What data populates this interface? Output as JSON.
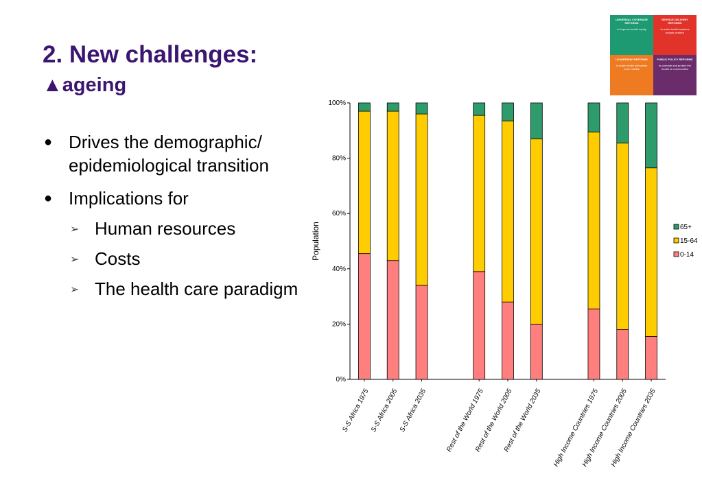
{
  "slide": {
    "title": "2. New challenges:",
    "subtitle": "▲ageing"
  },
  "bullets": [
    {
      "text": "Drives the demographic/ epidemiological transition"
    },
    {
      "text": "Implications for"
    }
  ],
  "sub_bullets": [
    "Human resources",
    "Costs",
    "The health care paradigm"
  ],
  "logo": {
    "tl": {
      "title": "UNIVERSAL COVERAGE REFORMS",
      "sub": "to improve health equity"
    },
    "tr": {
      "title": "SERVICE DELIVERY REFORMS",
      "sub": "to make health systems people-centred"
    },
    "bl": {
      "title": "LEADERSHIP REFORMS",
      "sub": "to make health authorities more reliable"
    },
    "br": {
      "title": "PUBLIC POLICY REFORMS",
      "sub": "to promote and protect the health of communities"
    }
  },
  "chart_data": {
    "type": "bar",
    "stacked": true,
    "percent": true,
    "ylabel": "Population",
    "ylim": [
      0,
      100
    ],
    "yticks": [
      "0%",
      "20%",
      "40%",
      "60%",
      "80%",
      "100%"
    ],
    "legend_position": "right",
    "categories": [
      "S-S Africa 1975",
      "S-S Africa 2005",
      "S-S Africa 2035",
      "Rest of the World 1975",
      "Rest of the World 2005",
      "Rest of the World 2035",
      "High Income Countries 1975",
      "High Income Countries 2005",
      "High Income Countries 2035"
    ],
    "series": [
      {
        "name": "0-14",
        "color": "#ff7f7f",
        "values": [
          45.5,
          43,
          34,
          39,
          28,
          20,
          25.5,
          18,
          15.5
        ]
      },
      {
        "name": "15-64",
        "color": "#ffcc00",
        "values": [
          51.5,
          54,
          62,
          56.5,
          65.5,
          67,
          64,
          67.5,
          61
        ]
      },
      {
        "name": "65+",
        "color": "#2e9b6c",
        "values": [
          3,
          3,
          4,
          4.5,
          6.5,
          13,
          10.5,
          14.5,
          23.5
        ]
      }
    ]
  }
}
